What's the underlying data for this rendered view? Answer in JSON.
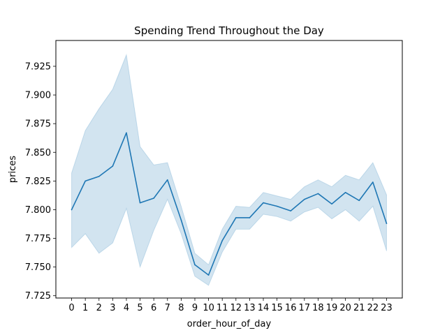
{
  "chart_data": {
    "type": "line",
    "title": "Spending Trend Throughout the Day",
    "xlabel": "order_hour_of_day",
    "ylabel": "prices",
    "x": [
      0,
      1,
      2,
      3,
      4,
      5,
      6,
      7,
      8,
      9,
      10,
      11,
      12,
      13,
      14,
      15,
      16,
      17,
      18,
      19,
      20,
      21,
      22,
      23
    ],
    "x_tick_labels": [
      "0",
      "1",
      "2",
      "3",
      "4",
      "5",
      "6",
      "7",
      "8",
      "9",
      "10",
      "11",
      "12",
      "13",
      "14",
      "15",
      "16",
      "17",
      "18",
      "19",
      "20",
      "21",
      "22",
      "23"
    ],
    "xlim": [
      -1.15,
      24.15
    ],
    "ylim": [
      7.723,
      7.9475
    ],
    "y_ticks": [
      7.725,
      7.75,
      7.775,
      7.8,
      7.825,
      7.85,
      7.875,
      7.9,
      7.925
    ],
    "y_tick_labels": [
      "7.725",
      "7.750",
      "7.775",
      "7.800",
      "7.825",
      "7.850",
      "7.875",
      "7.900",
      "7.925"
    ],
    "grid": false,
    "series": [
      {
        "color": "#1f77b4",
        "band_color": "#1f77b4",
        "values": [
          7.8,
          7.825,
          7.829,
          7.838,
          7.867,
          7.806,
          7.81,
          7.826,
          7.791,
          7.752,
          7.743,
          7.773,
          7.793,
          7.793,
          7.806,
          7.803,
          7.799,
          7.809,
          7.814,
          7.805,
          7.815,
          7.808,
          7.824,
          7.788
        ],
        "ci_lower": [
          7.767,
          7.779,
          7.762,
          7.771,
          7.801,
          7.75,
          7.782,
          7.809,
          7.779,
          7.742,
          7.734,
          7.763,
          7.783,
          7.783,
          7.796,
          7.794,
          7.79,
          7.798,
          7.802,
          7.792,
          7.8,
          7.79,
          7.803,
          7.764
        ],
        "ci_upper": [
          7.832,
          7.869,
          7.888,
          7.905,
          7.935,
          7.855,
          7.839,
          7.841,
          7.803,
          7.762,
          7.752,
          7.783,
          7.803,
          7.802,
          7.815,
          7.812,
          7.809,
          7.82,
          7.826,
          7.82,
          7.83,
          7.826,
          7.841,
          7.813
        ]
      }
    ]
  }
}
